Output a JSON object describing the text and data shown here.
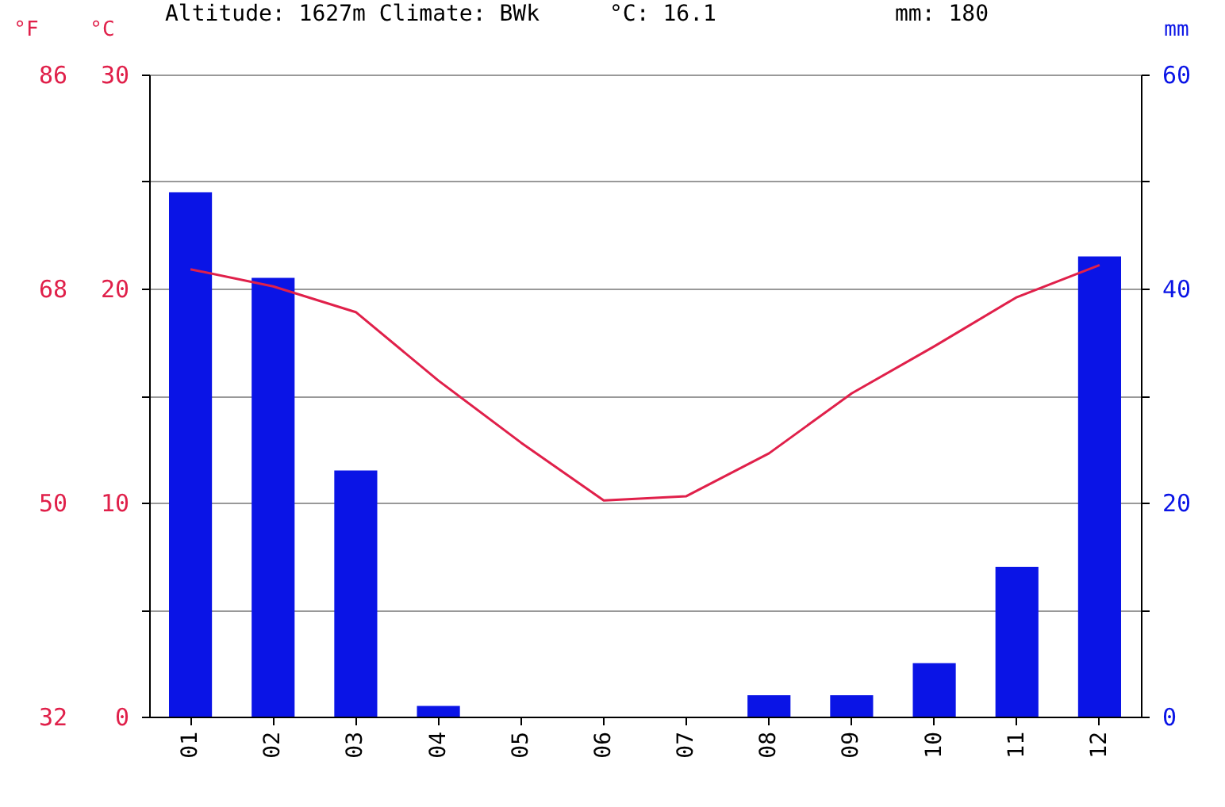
{
  "chart_data": {
    "type": "bar",
    "title": "Altitude: 1627m Climate: BWk",
    "annotations": [
      "°C: 16.1",
      "mm: 180"
    ],
    "categories": [
      "01",
      "02",
      "03",
      "04",
      "05",
      "06",
      "07",
      "08",
      "09",
      "10",
      "11",
      "12"
    ],
    "series": [
      {
        "axis": "y2",
        "color": "#0a14e6",
        "values": [
          49,
          41,
          23,
          1,
          0,
          0,
          0,
          2,
          2,
          5,
          14,
          43
        ]
      },
      {
        "type": "line",
        "axis": "y",
        "color": "#e0204a",
        "values": [
          20.9,
          20.1,
          18.9,
          15.7,
          12.8,
          10.1,
          10.3,
          12.3,
          15.1,
          17.3,
          19.6,
          21.1
        ]
      }
    ],
    "ylabel": "°C",
    "y2label": "mm",
    "y3label": "°F",
    "ylim": [
      0,
      30
    ],
    "yticks": [
      0,
      {
        "value": 5,
        "label": null
      },
      10,
      {
        "value": 15,
        "label": null
      },
      20,
      {
        "value": 25,
        "label": null
      },
      30
    ],
    "y2lim": [
      0,
      60
    ],
    "y2ticks": [
      0,
      {
        "value": 10,
        "label": null
      },
      20,
      {
        "value": 30,
        "label": null
      },
      40,
      {
        "value": 50,
        "label": null
      },
      60
    ],
    "y3lim": [
      32,
      86
    ],
    "y3ticks": [
      32,
      50,
      68,
      86
    ],
    "grid": "y",
    "marker": "none",
    "line_style": "solid"
  }
}
